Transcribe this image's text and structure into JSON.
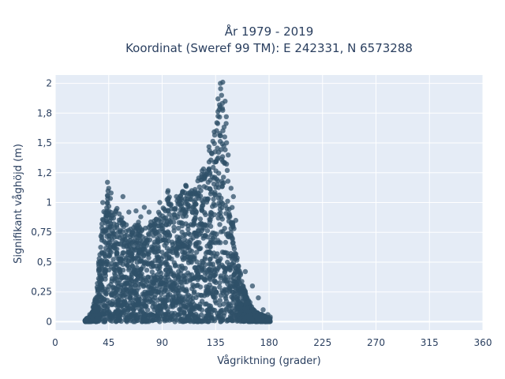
{
  "chart_data": {
    "type": "scatter",
    "title_line1": "År 1979 - 2019",
    "title_line2": "Koordinat (Sweref 99 TM): E 242331, N 6573288",
    "xlabel": "Vågriktning (grader)",
    "ylabel": "Signifikant våghöjd (m)",
    "xlim": [
      0,
      360
    ],
    "ylim": [
      -0.07,
      2.07
    ],
    "xticks": [
      0,
      45,
      90,
      135,
      180,
      225,
      270,
      315,
      360
    ],
    "xtick_labels": [
      "0",
      "45",
      "90",
      "135",
      "180",
      "225",
      "270",
      "315",
      "360"
    ],
    "yticks": [
      0,
      0.25,
      0.5,
      0.75,
      1,
      1.25,
      1.5,
      1.75,
      2
    ],
    "ytick_labels": [
      "0",
      "0,25",
      "0,5",
      "0,75",
      "1",
      "1,2",
      "1,5",
      "1,8",
      "2"
    ],
    "grid": true,
    "plot_background": "#e5ecf6",
    "marker_color": "#2f5068",
    "envelope": [
      [
        25,
        0.02
      ],
      [
        30,
        0.05
      ],
      [
        35,
        0.25
      ],
      [
        38,
        0.75
      ],
      [
        40,
        0.9
      ],
      [
        42,
        1.0
      ],
      [
        44,
        1.15
      ],
      [
        46,
        1.05
      ],
      [
        50,
        0.95
      ],
      [
        55,
        0.9
      ],
      [
        60,
        0.82
      ],
      [
        65,
        0.78
      ],
      [
        70,
        0.85
      ],
      [
        75,
        0.8
      ],
      [
        80,
        0.85
      ],
      [
        85,
        0.9
      ],
      [
        90,
        0.95
      ],
      [
        95,
        1.1
      ],
      [
        100,
        1.0
      ],
      [
        105,
        1.05
      ],
      [
        110,
        1.15
      ],
      [
        115,
        1.1
      ],
      [
        120,
        1.2
      ],
      [
        125,
        1.3
      ],
      [
        128,
        1.4
      ],
      [
        130,
        1.5
      ],
      [
        133,
        1.6
      ],
      [
        136,
        1.75
      ],
      [
        138,
        1.82
      ],
      [
        139,
        1.95
      ],
      [
        140,
        1.98
      ],
      [
        142,
        1.8
      ],
      [
        145,
        1.6
      ],
      [
        147,
        1.2
      ],
      [
        149,
        0.95
      ],
      [
        152,
        0.6
      ],
      [
        155,
        0.45
      ],
      [
        158,
        0.35
      ],
      [
        160,
        0.25
      ],
      [
        163,
        0.18
      ],
      [
        167,
        0.1
      ],
      [
        172,
        0.07
      ],
      [
        176,
        0.05
      ],
      [
        181,
        0.03
      ]
    ],
    "outliers": [
      [
        44,
        1.17
      ],
      [
        45,
        1.12
      ],
      [
        47,
        1.08
      ],
      [
        40,
        1.0
      ],
      [
        44,
        1.0
      ],
      [
        57,
        1.05
      ],
      [
        52,
        0.95
      ],
      [
        62,
        0.92
      ],
      [
        68,
        0.93
      ],
      [
        75,
        0.96
      ],
      [
        79,
        0.92
      ],
      [
        88,
        1.0
      ],
      [
        95,
        1.1
      ],
      [
        102,
        1.05
      ],
      [
        110,
        1.14
      ],
      [
        115,
        1.1
      ],
      [
        120,
        1.08
      ],
      [
        95,
        0.93
      ],
      [
        100,
        0.9
      ],
      [
        85,
        0.86
      ],
      [
        72,
        0.88
      ],
      [
        139,
        2.0
      ],
      [
        141,
        2.01
      ],
      [
        137,
        1.87
      ],
      [
        140,
        1.9
      ],
      [
        143,
        1.85
      ],
      [
        138,
        1.78
      ],
      [
        144,
        1.72
      ],
      [
        136,
        1.67
      ],
      [
        148,
        1.12
      ],
      [
        150,
        1.05
      ],
      [
        152,
        0.85
      ],
      [
        160,
        0.42
      ],
      [
        166,
        0.3
      ],
      [
        171,
        0.2
      ],
      [
        175,
        0.1
      ],
      [
        179,
        0.06
      ],
      [
        181,
        0.04
      ],
      [
        29,
        0.06
      ],
      [
        27,
        0.03
      ]
    ]
  }
}
